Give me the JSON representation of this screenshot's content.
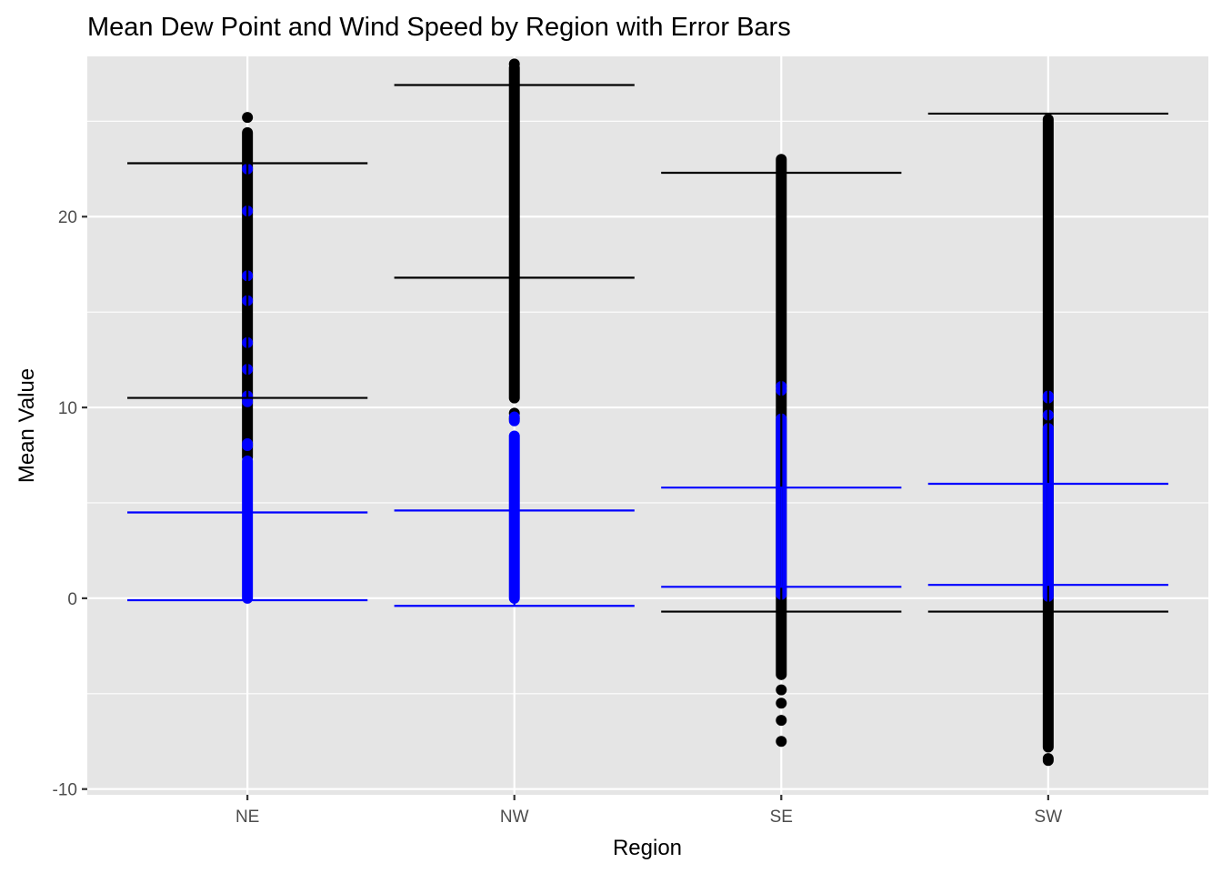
{
  "chart_data": {
    "type": "scatter",
    "title": "Mean Dew Point and Wind Speed by Region with Error Bars",
    "xlabel": "Region",
    "ylabel": "Mean Value",
    "categories": [
      "NE",
      "NW",
      "SE",
      "SW"
    ],
    "y_ticks": [
      -10,
      0,
      10,
      20
    ],
    "ylim": [
      -10.3,
      28.4
    ],
    "grid": true,
    "legend": "none",
    "colors": {
      "panel": "#e5e5e5",
      "grid": "#ffffff",
      "dew_point": "#000000",
      "wind_speed": "#0000ff"
    },
    "series": [
      {
        "color": "#000000",
        "points": [
          {
            "x": "NE",
            "dense_range": [
              7.4,
              24.4
            ],
            "extra_y": [
              25.2
            ]
          },
          {
            "x": "NW",
            "dense_range": [
              10.5,
              27.8
            ],
            "extra_y": [
              9.4,
              9.7,
              28.0
            ]
          },
          {
            "x": "SE",
            "dense_range": [
              -4.0,
              23.0
            ],
            "extra_y": [
              -4.8,
              -5.5,
              -6.4,
              -7.5
            ]
          },
          {
            "x": "SW",
            "dense_range": [
              -7.8,
              25.1
            ],
            "extra_y": [
              -8.5,
              -8.4
            ]
          }
        ],
        "error_bars": [
          {
            "x": "NE",
            "low": 10.5,
            "high": 22.8
          },
          {
            "x": "NW",
            "low": 16.8,
            "high": 26.9
          },
          {
            "x": "SE",
            "low": -0.7,
            "high": 22.3
          },
          {
            "x": "SW",
            "low": -0.7,
            "high": 25.4
          }
        ]
      },
      {
        "color": "#0000ff",
        "points": [
          {
            "x": "NE",
            "dense_range": [
              0.0,
              7.2
            ],
            "extra_y": [
              8.0,
              8.1,
              10.3,
              10.6,
              12.0,
              13.4,
              15.6,
              16.9,
              20.3,
              22.5
            ]
          },
          {
            "x": "NW",
            "dense_range": [
              0.0,
              8.5
            ],
            "extra_y": [
              9.3,
              9.5
            ]
          },
          {
            "x": "SE",
            "dense_range": [
              0.2,
              9.4
            ],
            "extra_y": [
              10.9,
              11.1
            ]
          },
          {
            "x": "SW",
            "dense_range": [
              0.1,
              8.9
            ],
            "extra_y": [
              9.6,
              10.5,
              10.6
            ]
          }
        ],
        "error_bars": [
          {
            "x": "NE",
            "low": -0.1,
            "high": 4.5
          },
          {
            "x": "NW",
            "low": -0.4,
            "high": 4.6
          },
          {
            "x": "SE",
            "low": 0.6,
            "high": 5.8
          },
          {
            "x": "SW",
            "low": 0.7,
            "high": 6.0
          }
        ]
      }
    ]
  }
}
